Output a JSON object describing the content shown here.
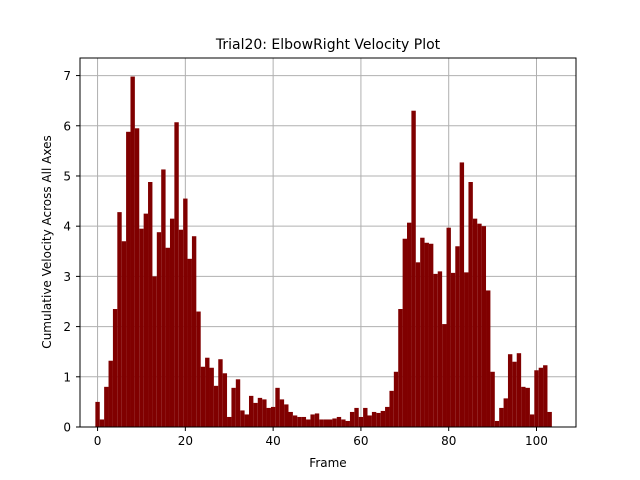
{
  "chart_data": {
    "type": "bar",
    "title": "Trial20: ElbowRight Velocity Plot",
    "xlabel": "Frame",
    "ylabel": "Cumulative Velocity Across All Axes",
    "xlim": [
      -4,
      109
    ],
    "ylim": [
      0,
      7.35
    ],
    "xticks": [
      0,
      20,
      40,
      60,
      80,
      100
    ],
    "yticks": [
      0,
      1,
      2,
      3,
      4,
      5,
      6,
      7
    ],
    "grid": true,
    "bar_color": "#800000",
    "bar_width": 1,
    "x": [
      0,
      1,
      2,
      3,
      4,
      5,
      6,
      7,
      8,
      9,
      10,
      11,
      12,
      13,
      14,
      15,
      16,
      17,
      18,
      19,
      20,
      21,
      22,
      23,
      24,
      25,
      26,
      27,
      28,
      29,
      30,
      31,
      32,
      33,
      34,
      35,
      36,
      37,
      38,
      39,
      40,
      41,
      42,
      43,
      44,
      45,
      46,
      47,
      48,
      49,
      50,
      51,
      52,
      53,
      54,
      55,
      56,
      57,
      58,
      59,
      60,
      61,
      62,
      63,
      64,
      65,
      66,
      67,
      68,
      69,
      70,
      71,
      72,
      73,
      74,
      75,
      76,
      77,
      78,
      79,
      80,
      81,
      82,
      83,
      84,
      85,
      86,
      87,
      88,
      89,
      90,
      91,
      92,
      93,
      94,
      95,
      96,
      97,
      98,
      99,
      100,
      101,
      102,
      103,
      104
    ],
    "values": [
      0.5,
      0.15,
      0.8,
      1.32,
      2.35,
      4.28,
      3.7,
      5.88,
      6.98,
      5.95,
      3.95,
      4.25,
      4.88,
      3.0,
      3.88,
      5.13,
      3.57,
      4.15,
      6.07,
      3.93,
      4.55,
      3.35,
      3.8,
      2.3,
      1.2,
      1.38,
      1.18,
      0.82,
      1.35,
      1.07,
      0.2,
      0.78,
      0.95,
      0.33,
      0.25,
      0.62,
      0.48,
      0.58,
      0.55,
      0.38,
      0.4,
      0.78,
      0.55,
      0.45,
      0.3,
      0.23,
      0.2,
      0.2,
      0.15,
      0.25,
      0.27,
      0.15,
      0.15,
      0.15,
      0.17,
      0.2,
      0.15,
      0.12,
      0.3,
      0.38,
      0.2,
      0.38,
      0.23,
      0.3,
      0.28,
      0.32,
      0.4,
      0.72,
      1.1,
      2.35,
      3.75,
      4.07,
      6.3,
      3.28,
      3.77,
      3.67,
      3.65,
      3.05,
      3.1,
      2.05,
      3.97,
      3.07,
      3.6,
      5.27,
      3.08,
      4.88,
      4.15,
      4.05,
      4.0,
      2.72,
      1.1,
      0.12,
      0.38,
      0.57,
      1.45,
      1.3,
      1.47,
      0.8,
      0.78,
      0.25,
      1.13,
      1.18,
      1.23,
      0.3,
      0.0
    ]
  }
}
